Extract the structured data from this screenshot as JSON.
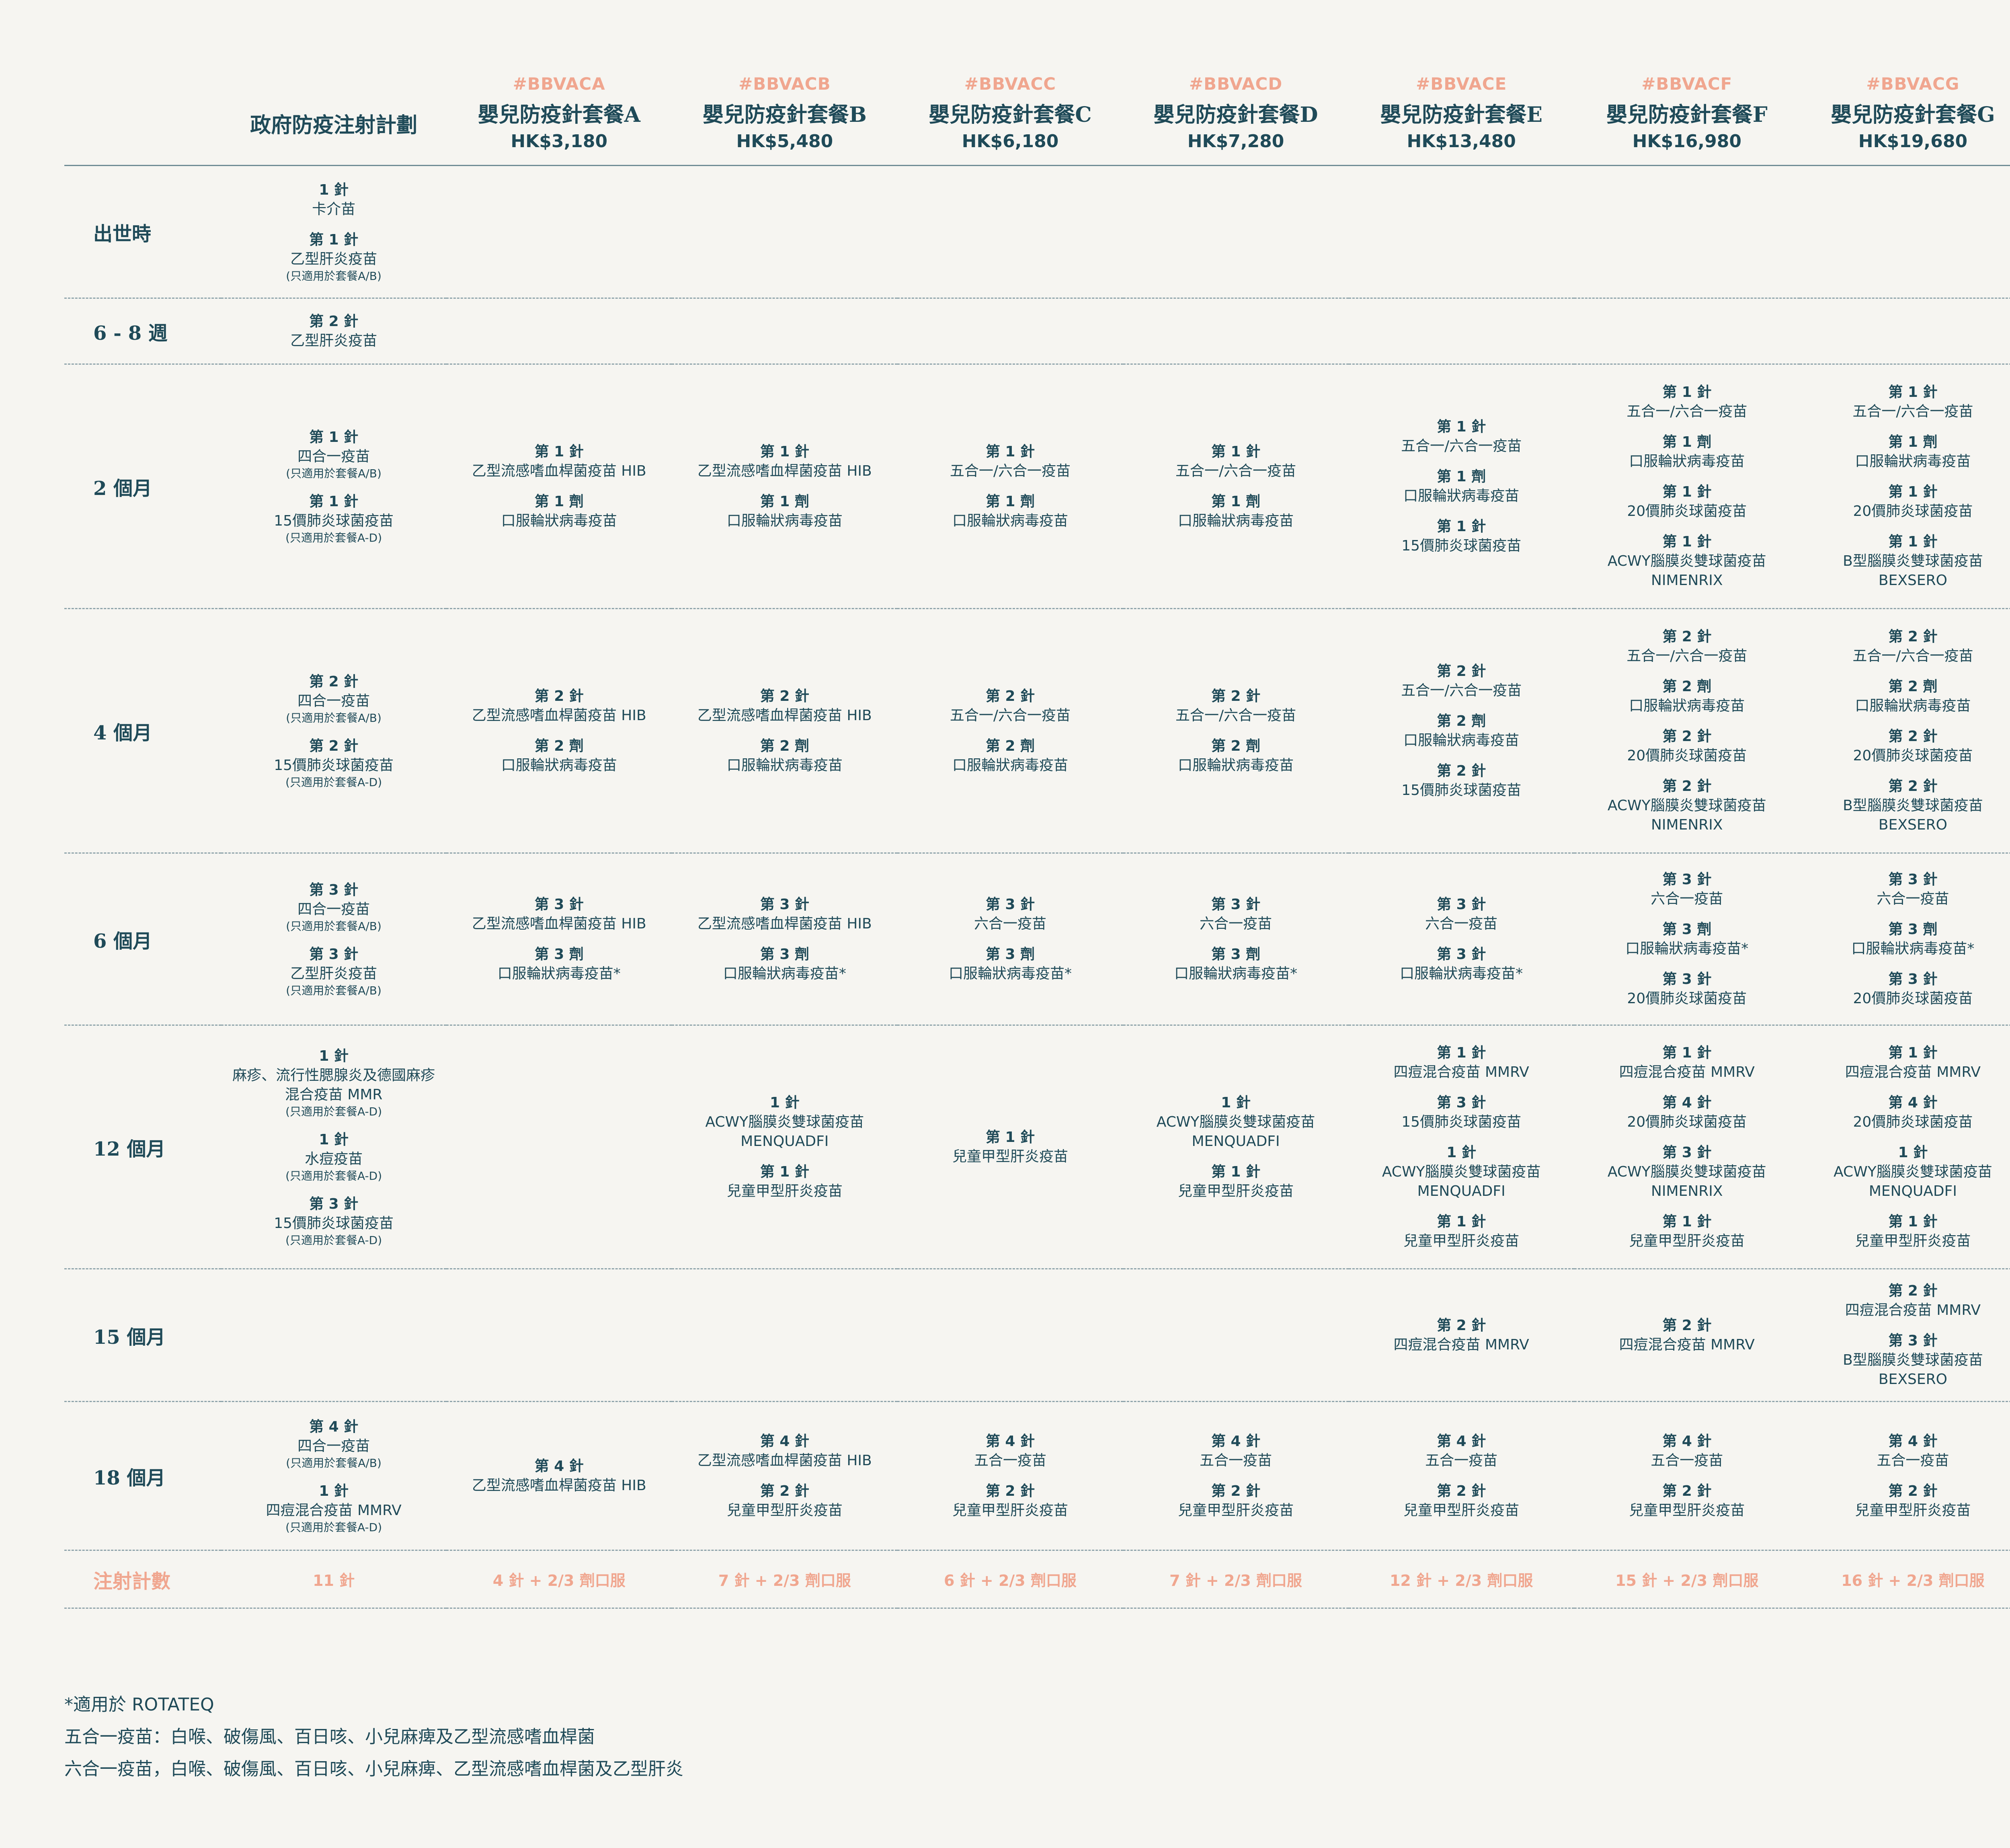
{
  "header": {
    "gov": {
      "name": "政府防疫注射計劃"
    },
    "packages": [
      {
        "code": "#BBVACA",
        "name": "嬰兒防疫針套餐A",
        "price": "HK$3,180"
      },
      {
        "code": "#BBVACB",
        "name": "嬰兒防疫針套餐B",
        "price": "HK$5,480"
      },
      {
        "code": "#BBVACC",
        "name": "嬰兒防疫針套餐C",
        "price": "HK$6,180"
      },
      {
        "code": "#BBVACD",
        "name": "嬰兒防疫針套餐D",
        "price": "HK$7,280"
      },
      {
        "code": "#BBVACE",
        "name": "嬰兒防疫針套餐E",
        "price": "HK$13,480"
      },
      {
        "code": "#BBVACF",
        "name": "嬰兒防疫針套餐F",
        "price": "HK$16,980"
      },
      {
        "code": "#BBVACG",
        "name": "嬰兒防疫針套餐G",
        "price": "HK$19,680"
      }
    ]
  },
  "rows": [
    {
      "age": "出世時",
      "cells": [
        [
          {
            "dose": "1 針",
            "vac": "卡介苗"
          },
          {
            "dose": "第 1 針",
            "vac": "乙型肝炎疫苗",
            "note": "(只適用於套餐A/B)"
          }
        ],
        [],
        [],
        [],
        [],
        [],
        [],
        []
      ]
    },
    {
      "age": "6 - 8 週",
      "cells": [
        [
          {
            "dose": "第 2 針",
            "vac": "乙型肝炎疫苗"
          }
        ],
        [],
        [],
        [],
        [],
        [],
        [],
        []
      ]
    },
    {
      "age": "2 個月",
      "cells": [
        [
          {
            "dose": "第 1 針",
            "vac": "四合一疫苗",
            "note": "(只適用於套餐A/B)"
          },
          {
            "dose": "第 1 針",
            "vac": "15價肺炎球菌疫苗",
            "note": "(只適用於套餐A-D)"
          }
        ],
        [
          {
            "dose": "第 1 針",
            "vac": "乙型流感嗜血桿菌疫苗 HIB"
          },
          {
            "dose": "第 1 劑",
            "vac": "口服輪狀病毒疫苗"
          }
        ],
        [
          {
            "dose": "第 1 針",
            "vac": "乙型流感嗜血桿菌疫苗 HIB"
          },
          {
            "dose": "第 1 劑",
            "vac": "口服輪狀病毒疫苗"
          }
        ],
        [
          {
            "dose": "第 1 針",
            "vac": "五合一/六合一疫苗"
          },
          {
            "dose": "第 1 劑",
            "vac": "口服輪狀病毒疫苗"
          }
        ],
        [
          {
            "dose": "第 1 針",
            "vac": "五合一/六合一疫苗"
          },
          {
            "dose": "第 1 劑",
            "vac": "口服輪狀病毒疫苗"
          }
        ],
        [
          {
            "dose": "第 1 針",
            "vac": "五合一/六合一疫苗"
          },
          {
            "dose": "第 1 劑",
            "vac": "口服輪狀病毒疫苗"
          },
          {
            "dose": "第 1 針",
            "vac": "15價肺炎球菌疫苗"
          }
        ],
        [
          {
            "dose": "第 1 針",
            "vac": "五合一/六合一疫苗"
          },
          {
            "dose": "第 1 劑",
            "vac": "口服輪狀病毒疫苗"
          },
          {
            "dose": "第 1 針",
            "vac": "20價肺炎球菌疫苗"
          },
          {
            "dose": "第 1 針",
            "vac": "ACWY腦膜炎雙球菌疫苗",
            "vac2": "NIMENRIX"
          }
        ],
        [
          {
            "dose": "第 1 針",
            "vac": "五合一/六合一疫苗"
          },
          {
            "dose": "第 1 劑",
            "vac": "口服輪狀病毒疫苗"
          },
          {
            "dose": "第 1 針",
            "vac": "20價肺炎球菌疫苗"
          },
          {
            "dose": "第 1 針",
            "vac": "B型腦膜炎雙球菌疫苗",
            "vac2": "BEXSERO"
          }
        ]
      ]
    },
    {
      "age": "4 個月",
      "cells": [
        [
          {
            "dose": "第 2 針",
            "vac": "四合一疫苗",
            "note": "(只適用於套餐A/B)"
          },
          {
            "dose": "第 2 針",
            "vac": "15價肺炎球菌疫苗",
            "note": "(只適用於套餐A-D)"
          }
        ],
        [
          {
            "dose": "第 2 針",
            "vac": "乙型流感嗜血桿菌疫苗 HIB"
          },
          {
            "dose": "第 2 劑",
            "vac": "口服輪狀病毒疫苗"
          }
        ],
        [
          {
            "dose": "第 2 針",
            "vac": "乙型流感嗜血桿菌疫苗 HIB"
          },
          {
            "dose": "第 2 劑",
            "vac": "口服輪狀病毒疫苗"
          }
        ],
        [
          {
            "dose": "第 2 針",
            "vac": "五合一/六合一疫苗"
          },
          {
            "dose": "第 2 劑",
            "vac": "口服輪狀病毒疫苗"
          }
        ],
        [
          {
            "dose": "第 2 針",
            "vac": "五合一/六合一疫苗"
          },
          {
            "dose": "第 2 劑",
            "vac": "口服輪狀病毒疫苗"
          }
        ],
        [
          {
            "dose": "第 2 針",
            "vac": "五合一/六合一疫苗"
          },
          {
            "dose": "第 2 劑",
            "vac": "口服輪狀病毒疫苗"
          },
          {
            "dose": "第 2 針",
            "vac": "15價肺炎球菌疫苗"
          }
        ],
        [
          {
            "dose": "第 2 針",
            "vac": "五合一/六合一疫苗"
          },
          {
            "dose": "第 2 劑",
            "vac": "口服輪狀病毒疫苗"
          },
          {
            "dose": "第 2 針",
            "vac": "20價肺炎球菌疫苗"
          },
          {
            "dose": "第 2 針",
            "vac": "ACWY腦膜炎雙球菌疫苗",
            "vac2": "NIMENRIX"
          }
        ],
        [
          {
            "dose": "第 2 針",
            "vac": "五合一/六合一疫苗"
          },
          {
            "dose": "第 2 劑",
            "vac": "口服輪狀病毒疫苗"
          },
          {
            "dose": "第 2 針",
            "vac": "20價肺炎球菌疫苗"
          },
          {
            "dose": "第 2 針",
            "vac": "B型腦膜炎雙球菌疫苗",
            "vac2": "BEXSERO"
          }
        ]
      ]
    },
    {
      "age": "6 個月",
      "cells": [
        [
          {
            "dose": "第 3 針",
            "vac": "四合一疫苗",
            "note": "(只適用於套餐A/B)"
          },
          {
            "dose": "第 3 針",
            "vac": "乙型肝炎疫苗",
            "note": "(只適用於套餐A/B)"
          }
        ],
        [
          {
            "dose": "第 3 針",
            "vac": "乙型流感嗜血桿菌疫苗 HIB"
          },
          {
            "dose": "第 3 劑",
            "vac": "口服輪狀病毒疫苗*"
          }
        ],
        [
          {
            "dose": "第 3 針",
            "vac": "乙型流感嗜血桿菌疫苗 HIB"
          },
          {
            "dose": "第 3 劑",
            "vac": "口服輪狀病毒疫苗*"
          }
        ],
        [
          {
            "dose": "第 3 針",
            "vac": "六合一疫苗"
          },
          {
            "dose": "第 3 劑",
            "vac": "口服輪狀病毒疫苗*"
          }
        ],
        [
          {
            "dose": "第 3 針",
            "vac": "六合一疫苗"
          },
          {
            "dose": "第 3 劑",
            "vac": "口服輪狀病毒疫苗*"
          }
        ],
        [
          {
            "dose": "第 3 針",
            "vac": "六合一疫苗"
          },
          {
            "dose": "第 3 針",
            "vac": "口服輪狀病毒疫苗*"
          }
        ],
        [
          {
            "dose": "第 3 針",
            "vac": "六合一疫苗"
          },
          {
            "dose": "第 3 劑",
            "vac": "口服輪狀病毒疫苗*"
          },
          {
            "dose": "第 3 針",
            "vac": "20價肺炎球菌疫苗"
          }
        ],
        [
          {
            "dose": "第 3 針",
            "vac": "六合一疫苗"
          },
          {
            "dose": "第 3 劑",
            "vac": "口服輪狀病毒疫苗*"
          },
          {
            "dose": "第 3 針",
            "vac": "20價肺炎球菌疫苗"
          }
        ]
      ]
    },
    {
      "age": "12 個月",
      "cells": [
        [
          {
            "dose": "1 針",
            "vac": "麻疹、流行性腮腺炎及德國麻疹",
            "vac2": "混合疫苗 MMR",
            "note": "(只適用於套餐A-D)"
          },
          {
            "dose": "1 針",
            "vac": "水痘疫苗",
            "note": "(只適用於套餐A-D)"
          },
          {
            "dose": "第 3 針",
            "vac": "15價肺炎球菌疫苗",
            "note": "(只適用於套餐A-D)"
          }
        ],
        [],
        [
          {
            "dose": "1 針",
            "vac": "ACWY腦膜炎雙球菌疫苗",
            "vac2": "MENQUADFI"
          },
          {
            "dose": "第 1 針",
            "vac": "兒童甲型肝炎疫苗"
          }
        ],
        [
          {
            "dose": "第 1 針",
            "vac": "兒童甲型肝炎疫苗"
          }
        ],
        [
          {
            "dose": "1 針",
            "vac": "ACWY腦膜炎雙球菌疫苗",
            "vac2": "MENQUADFI"
          },
          {
            "dose": "第 1 針",
            "vac": "兒童甲型肝炎疫苗"
          }
        ],
        [
          {
            "dose": "第 1 針",
            "vac": "四痘混合疫苗 MMRV"
          },
          {
            "dose": "第 3 針",
            "vac": "15價肺炎球菌疫苗"
          },
          {
            "dose": "1 針",
            "vac": "ACWY腦膜炎雙球菌疫苗",
            "vac2": "MENQUADFI"
          },
          {
            "dose": "第 1 針",
            "vac": "兒童甲型肝炎疫苗"
          }
        ],
        [
          {
            "dose": "第 1 針",
            "vac": "四痘混合疫苗 MMRV"
          },
          {
            "dose": "第 4 針",
            "vac": "20價肺炎球菌疫苗"
          },
          {
            "dose": "第 3 針",
            "vac": "ACWY腦膜炎雙球菌疫苗",
            "vac2": "NIMENRIX"
          },
          {
            "dose": "第 1 針",
            "vac": "兒童甲型肝炎疫苗"
          }
        ],
        [
          {
            "dose": "第 1 針",
            "vac": "四痘混合疫苗 MMRV"
          },
          {
            "dose": "第 4 針",
            "vac": "20價肺炎球菌疫苗"
          },
          {
            "dose": "1 針",
            "vac": "ACWY腦膜炎雙球菌疫苗",
            "vac2": "MENQUADFI"
          },
          {
            "dose": "第 1 針",
            "vac": "兒童甲型肝炎疫苗"
          }
        ]
      ]
    },
    {
      "age": "15 個月",
      "cells": [
        [],
        [],
        [],
        [],
        [],
        [
          {
            "dose": "第 2 針",
            "vac": "四痘混合疫苗 MMRV"
          }
        ],
        [
          {
            "dose": "第 2 針",
            "vac": "四痘混合疫苗 MMRV"
          }
        ],
        [
          {
            "dose": "第 2 針",
            "vac": "四痘混合疫苗 MMRV"
          },
          {
            "dose": "第 3 針",
            "vac": "B型腦膜炎雙球菌疫苗",
            "vac2": "BEXSERO"
          }
        ]
      ]
    },
    {
      "age": "18 個月",
      "cells": [
        [
          {
            "dose": "第 4 針",
            "vac": "四合一疫苗",
            "note": "(只適用於套餐A/B)"
          },
          {
            "dose": "1 針",
            "vac": "四痘混合疫苗 MMRV",
            "note": "(只適用於套餐A-D)"
          }
        ],
        [
          {
            "dose": "第 4 針",
            "vac": "乙型流感嗜血桿菌疫苗 HIB"
          }
        ],
        [
          {
            "dose": "第 4 針",
            "vac": "乙型流感嗜血桿菌疫苗 HIB"
          },
          {
            "dose": "第 2 針",
            "vac": "兒童甲型肝炎疫苗"
          }
        ],
        [
          {
            "dose": "第 4 針",
            "vac": "五合一疫苗"
          },
          {
            "dose": "第 2 針",
            "vac": "兒童甲型肝炎疫苗"
          }
        ],
        [
          {
            "dose": "第 4 針",
            "vac": "五合一疫苗"
          },
          {
            "dose": "第 2 針",
            "vac": "兒童甲型肝炎疫苗"
          }
        ],
        [
          {
            "dose": "第 4 針",
            "vac": "五合一疫苗"
          },
          {
            "dose": "第 2 針",
            "vac": "兒童甲型肝炎疫苗"
          }
        ],
        [
          {
            "dose": "第 4 針",
            "vac": "五合一疫苗"
          },
          {
            "dose": "第 2 針",
            "vac": "兒童甲型肝炎疫苗"
          }
        ],
        [
          {
            "dose": "第 4 針",
            "vac": "五合一疫苗"
          },
          {
            "dose": "第 2 針",
            "vac": "兒童甲型肝炎疫苗"
          }
        ]
      ]
    }
  ],
  "totals": {
    "label": "注射計數",
    "values": [
      "11 針",
      "4 針 + 2/3 劑口服",
      "7 針 + 2/3 劑口服",
      "6 針 + 2/3 劑口服",
      "7 針 + 2/3 劑口服",
      "12 針 + 2/3 劑口服",
      "15 針 + 2/3 劑口服",
      "16 針 + 2/3 劑口服"
    ]
  },
  "footnotes": [
    "*適用於 ROTATEQ",
    "五合一疫苗：白喉、破傷風、百日咳、小兒麻痺及乙型流感嗜血桿菌",
    "六合一疫苗，白喉、破傷風、百日咳、小兒麻痺、乙型流感嗜血桿菌及乙型肝炎"
  ],
  "colors": {
    "text": "#1f4a58",
    "accent": "#f0a68f",
    "background": "#f6f5f1"
  }
}
